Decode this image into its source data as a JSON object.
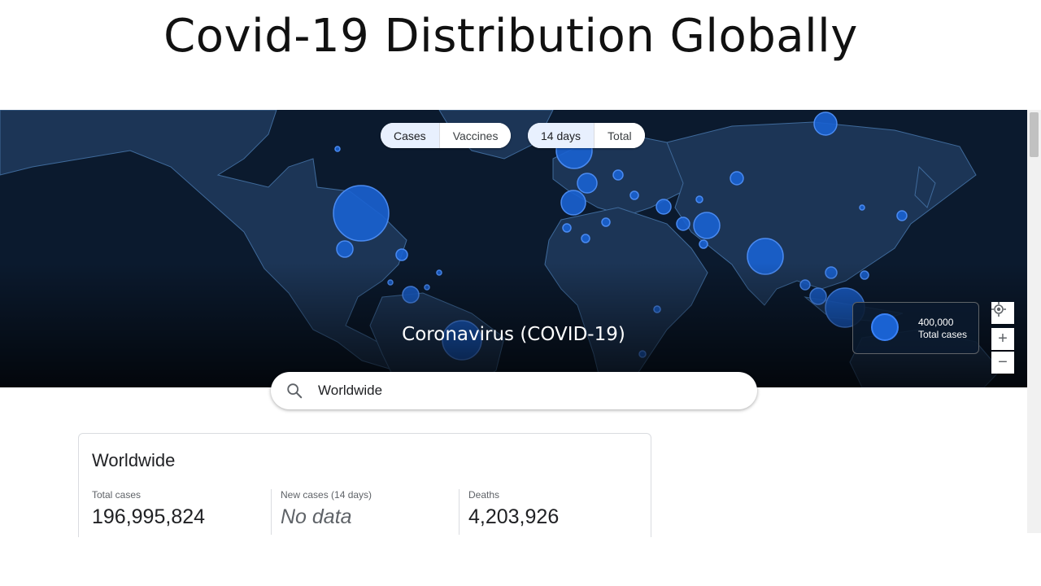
{
  "slide": {
    "title": "Covid-19 Distribution Globally"
  },
  "map": {
    "metric_tabs": [
      "Cases",
      "Vaccines"
    ],
    "active_metric": "Cases",
    "range_tabs": [
      "14 days",
      "Total"
    ],
    "active_range": "14 days",
    "title": "Coronavirus (COVID-19)",
    "legend": {
      "value": "400,000",
      "label": "Total cases"
    },
    "controls": {
      "zoom_in": "+",
      "zoom_out": "−"
    },
    "colors": {
      "ocean": "#0b1a2e",
      "land": "#1c3556",
      "border": "#3f6a9b",
      "bubble": "#1a62d2",
      "bubble_edge": "#4a8af0"
    }
  },
  "search": {
    "value": "Worldwide",
    "placeholder": "Search"
  },
  "stats": {
    "region": "Worldwide",
    "items": [
      {
        "label": "Total cases",
        "value": "196,995,824"
      },
      {
        "label": "New cases (14 days)",
        "value": "No data"
      },
      {
        "label": "Deaths",
        "value": "4,203,926"
      }
    ]
  }
}
